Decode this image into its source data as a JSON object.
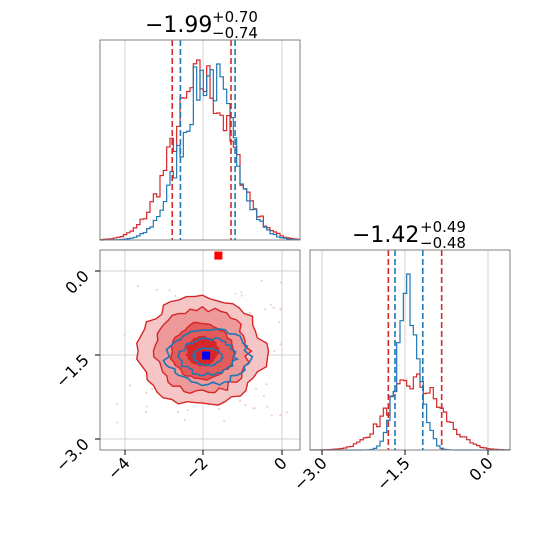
{
  "chart_data": [
    {
      "panel": "x-marginal",
      "type": "histogram",
      "title": {
        "median": "−1.99",
        "plus": "+0.70",
        "minus": "−0.74"
      },
      "xlim": [
        -4.5,
        0.4
      ],
      "grid": true,
      "series": [
        {
          "color": "#d62728",
          "quantiles": [
            -2.73,
            -1.29
          ],
          "center": -1.99,
          "sigma": 0.72,
          "bar_count": 60
        },
        {
          "color": "#1f77b4",
          "quantiles": [
            -2.53,
            -1.19
          ],
          "center": -1.86,
          "sigma": 0.62,
          "bar_count": 60
        }
      ]
    },
    {
      "panel": "y-marginal",
      "type": "histogram",
      "title": {
        "median": "−1.42",
        "plus": "+0.49",
        "minus": "−0.48"
      },
      "xlim": [
        -3.3,
        0.3
      ],
      "grid": true,
      "xticks": [
        "−3.0",
        "−1.5",
        "0.0"
      ],
      "series": [
        {
          "color": "#d62728",
          "quantiles": [
            -1.89,
            -0.93
          ],
          "center": -1.42,
          "sigma": 0.48,
          "bar_count": 60
        },
        {
          "color": "#1f77b4",
          "quantiles": [
            -1.77,
            -1.27
          ],
          "center": -1.52,
          "sigma": 0.2,
          "bar_count": 60
        }
      ]
    },
    {
      "panel": "joint",
      "type": "contour",
      "xlim": [
        -4.5,
        0.4
      ],
      "ylim": [
        -3.2,
        0.4
      ],
      "grid": true,
      "xticks": [
        "−4",
        "−2",
        "0"
      ],
      "yticks": [
        "0.0",
        "−1.5",
        "−3.0"
      ],
      "series": [
        {
          "color": "#d62728",
          "center": [
            -1.99,
            -1.42
          ],
          "sigma": [
            0.72,
            0.48
          ],
          "levels": [
            0.5,
            1.0,
            1.5,
            2.0
          ]
        },
        {
          "color": "#1f77b4",
          "center": [
            -1.86,
            -1.52
          ],
          "sigma": [
            0.62,
            0.2
          ],
          "levels": [
            0.5,
            1.0,
            1.5
          ]
        }
      ],
      "markers": [
        {
          "color": "#ff0000",
          "x": -1.6,
          "y": 0.3
        },
        {
          "color": "#0000ff",
          "x": -1.9,
          "y": -1.5
        }
      ]
    }
  ]
}
